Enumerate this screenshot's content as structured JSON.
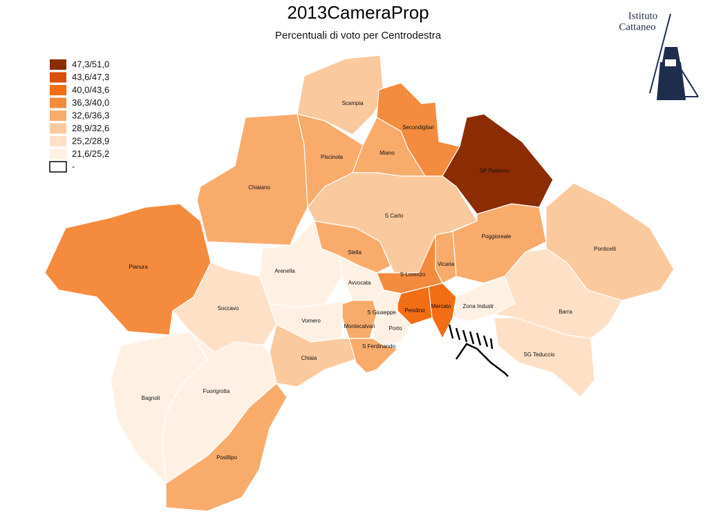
{
  "chart_data": {
    "type": "choropleth",
    "title": "2013CameraProp",
    "subtitle": "Percentuali di voto per Centrodestra",
    "legend": [
      {
        "label": "47,3/51,0",
        "color": "#8b2c02"
      },
      {
        "label": "43,6/47,3",
        "color": "#d94e0a"
      },
      {
        "label": "40,0/43,6",
        "color": "#f26d14"
      },
      {
        "label": "36,3/40,0",
        "color": "#f58b3e"
      },
      {
        "label": "32,6/36,3",
        "color": "#f9ab6c"
      },
      {
        "label": "28,9/32,6",
        "color": "#fbc99e"
      },
      {
        "label": "25,2/28,9",
        "color": "#fde0c6"
      },
      {
        "label": "21,6/25,2",
        "color": "#fef1e4"
      },
      {
        "label": "-",
        "color": "#ffffff"
      }
    ],
    "regions": [
      {
        "name": "Scampia",
        "color": "#fbc99e"
      },
      {
        "name": "Secondiglian",
        "color": "#f58b3e"
      },
      {
        "name": "SP Patierno",
        "color": "#8b2c02"
      },
      {
        "name": "Piscinola",
        "color": "#f9ab6c"
      },
      {
        "name": "Miano",
        "color": "#f9ab6c"
      },
      {
        "name": "Chiaiano",
        "color": "#f9ab6c"
      },
      {
        "name": "S Carlo",
        "color": "#fbc99e"
      },
      {
        "name": "Poggioreale",
        "color": "#f9ab6c"
      },
      {
        "name": "Ponticelli",
        "color": "#fbc99e"
      },
      {
        "name": "Pianura",
        "color": "#f58b3e"
      },
      {
        "name": "Stella",
        "color": "#f9ab6c"
      },
      {
        "name": "Vicaria",
        "color": "#f9ab6c"
      },
      {
        "name": "S Lorenzo",
        "color": "#f58b3e"
      },
      {
        "name": "Arenella",
        "color": "#fef1e4"
      },
      {
        "name": "Avvocata",
        "color": "#fef1e4"
      },
      {
        "name": "Soccavo",
        "color": "#fde0c6"
      },
      {
        "name": "Vomero",
        "color": "#fef1e4"
      },
      {
        "name": "S Giuseppe",
        "color": "#fef1e4"
      },
      {
        "name": "Montecalvari",
        "color": "#f9ab6c"
      },
      {
        "name": "Porto",
        "color": "#fef1e4"
      },
      {
        "name": "Pendino",
        "color": "#f26d14"
      },
      {
        "name": "Mercato",
        "color": "#f26d14"
      },
      {
        "name": "Zona Industr",
        "color": "#fef1e4"
      },
      {
        "name": "Barra",
        "color": "#fde0c6"
      },
      {
        "name": "SG Teduccio",
        "color": "#fde0c6"
      },
      {
        "name": "Chiaia",
        "color": "#fbc99e"
      },
      {
        "name": "S Ferdinando",
        "color": "#f9ab6c"
      },
      {
        "name": "Bagnoli",
        "color": "#fef1e4"
      },
      {
        "name": "Fuorigrotta",
        "color": "#fef1e4"
      },
      {
        "name": "Posillipo",
        "color": "#f9ab6c"
      }
    ]
  },
  "logo": {
    "lines": [
      "Istituto",
      "Cattaneo"
    ]
  }
}
